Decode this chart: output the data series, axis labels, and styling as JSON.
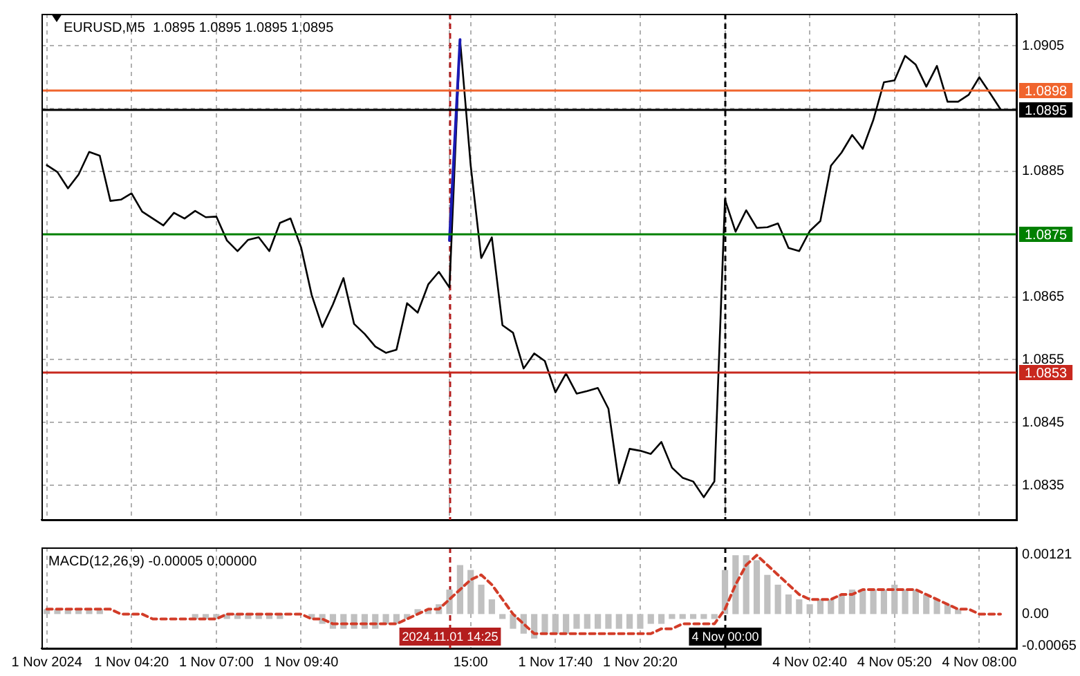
{
  "chart_data": [
    {
      "type": "line",
      "title": "EURUSD,M5  1.0895 1.0895 1.0895 1.0895",
      "categories": [
        "1 Nov 2024",
        null,
        null,
        null,
        null,
        null,
        null,
        null,
        "1 Nov 04:20",
        null,
        null,
        null,
        null,
        null,
        null,
        null,
        "1 Nov 07:00",
        null,
        null,
        null,
        null,
        null,
        null,
        null,
        "1 Nov 09:40",
        null,
        null,
        null,
        null,
        null,
        null,
        null,
        null,
        null,
        null,
        null,
        null,
        null,
        "2024.11.01 14:25",
        null,
        "15:00",
        null,
        null,
        null,
        null,
        null,
        null,
        null,
        "1 Nov 17:40",
        null,
        null,
        null,
        null,
        null,
        null,
        null,
        "1 Nov 20:20",
        null,
        null,
        null,
        null,
        null,
        null,
        null,
        "4 Nov 00:00",
        null,
        null,
        null,
        null,
        null,
        null,
        null,
        "4 Nov 02:40",
        null,
        null,
        null,
        null,
        null,
        null,
        null,
        "4 Nov 05:20",
        null,
        null,
        null,
        null,
        null,
        null,
        null,
        "4 Nov 08:00",
        null,
        null,
        null
      ],
      "ylim": [
        1.08295,
        1.09101
      ],
      "yticks": [
        1.0835,
        1.0845,
        1.0855,
        1.0865,
        1.0875,
        1.0885,
        {
          "value": 1.0895,
          "label": null
        },
        1.0905
      ],
      "tick_labels": "y",
      "grid": true,
      "legend": false,
      "series": [
        {
          "color": "#000000",
          "values": [
            1.0886,
            1.08849,
            1.08823,
            1.08845,
            1.08881,
            1.08875,
            1.08803,
            1.08805,
            1.08815,
            1.08786,
            1.08775,
            1.08764,
            1.08784,
            1.08775,
            1.08787,
            1.08777,
            1.08778,
            1.0874,
            1.08723,
            1.08741,
            1.08745,
            1.08723,
            1.08768,
            1.08775,
            1.08729,
            1.08653,
            1.08602,
            1.08638,
            1.0868,
            1.08607,
            1.08591,
            1.08571,
            1.08561,
            1.08566,
            1.0864,
            1.08625,
            1.0867,
            1.0869,
            1.08665,
            1.0906,
            1.0886,
            1.08712,
            1.08745,
            1.08605,
            1.08593,
            1.08536,
            1.0856,
            1.08548,
            1.08498,
            1.08528,
            1.08496,
            1.085,
            1.08505,
            1.08472,
            1.08353,
            1.08408,
            1.08405,
            1.084,
            1.08419,
            1.08378,
            1.08362,
            1.08356,
            1.08331,
            1.08356,
            1.08805,
            1.08754,
            1.08788,
            1.0876,
            1.08761,
            1.08767,
            1.08728,
            1.08723,
            1.08755,
            1.08771,
            1.08859,
            1.0888,
            1.08908,
            1.08886,
            1.08932,
            1.08992,
            1.08995,
            1.09034,
            1.0902,
            1.08985,
            1.09018,
            1.08961,
            1.08961,
            1.08972,
            1.09,
            1.08975,
            1.08949,
            null
          ]
        },
        {
          "color": "#1a1ab4",
          "values": [
            null,
            null,
            null,
            null,
            null,
            null,
            null,
            null,
            null,
            null,
            null,
            null,
            null,
            null,
            null,
            null,
            null,
            null,
            null,
            null,
            null,
            null,
            null,
            null,
            null,
            null,
            null,
            null,
            null,
            null,
            null,
            null,
            null,
            null,
            null,
            null,
            null,
            null,
            1.0874,
            1.0906,
            null,
            null,
            null,
            null,
            null,
            null,
            null,
            null,
            null,
            null,
            null,
            null,
            null,
            null,
            null,
            null,
            null,
            null,
            null,
            null,
            null,
            null,
            null,
            null,
            null,
            null,
            null,
            null,
            null,
            null,
            null,
            null,
            null,
            null,
            null,
            null,
            null,
            null,
            null,
            null,
            null,
            null,
            null,
            null,
            null,
            null,
            null,
            null,
            null,
            null,
            null,
            null
          ]
        }
      ],
      "ref_lines": [
        {
          "axis": "y",
          "value": 1.0898,
          "label": "1.0898",
          "color": "#f0642d"
        },
        {
          "axis": "y",
          "value": 1.0895,
          "label": "1.0895",
          "color": "#000000"
        },
        {
          "axis": "y",
          "value": 1.0875,
          "label": "1.0875",
          "color": "#008000"
        },
        {
          "axis": "y",
          "value": 1.0853,
          "label": "1.0853",
          "color": "#c8281e"
        },
        {
          "axis": "x",
          "value": "2024.11.01 14:25",
          "color": "#b41e1e",
          "line_style": "dashed"
        },
        {
          "axis": "x",
          "value": "4 Nov 00:00",
          "color": "#000000",
          "line_style": "dashed"
        }
      ]
    },
    {
      "type": "bar",
      "title": "MACD(12,26,9) -0.00005 0.00000",
      "categories": [
        "1 Nov 2024",
        null,
        null,
        null,
        null,
        null,
        null,
        null,
        "1 Nov 04:20",
        null,
        null,
        null,
        null,
        null,
        null,
        null,
        "1 Nov 07:00",
        null,
        null,
        null,
        null,
        null,
        null,
        null,
        "1 Nov 09:40",
        null,
        null,
        null,
        null,
        null,
        null,
        null,
        null,
        null,
        null,
        null,
        null,
        null,
        "2024.11.01 14:25",
        null,
        "15:00",
        null,
        null,
        null,
        null,
        null,
        null,
        null,
        "1 Nov 17:40",
        null,
        null,
        null,
        null,
        null,
        null,
        null,
        "1 Nov 20:20",
        null,
        null,
        null,
        null,
        null,
        null,
        null,
        "4 Nov 00:00",
        null,
        null,
        null,
        null,
        null,
        null,
        null,
        "4 Nov 02:40",
        null,
        null,
        null,
        null,
        null,
        null,
        null,
        "4 Nov 05:20",
        null,
        null,
        null,
        null,
        null,
        null,
        null,
        "4 Nov 08:00",
        null,
        null,
        null
      ],
      "ylim": [
        -0.0007,
        0.00136
      ],
      "yticks": [
        0.00121,
        {
          "value": 0,
          "label": "0.00"
        },
        -0.00065
      ],
      "grid": "x",
      "legend": false,
      "series": [
        {
          "color": "#c0c0c0",
          "values": [
            0.0001,
            0.0001,
            0.0001,
            0.0001,
            0.0001,
            0.0001,
            0,
            0,
            0,
            0,
            0,
            0,
            0,
            0,
            -0.0001,
            -0.0001,
            -0.0001,
            -0.0001,
            -0.0001,
            -0.0001,
            -0.0001,
            -0.0001,
            -0.0001,
            0,
            0,
            -0.0001,
            -0.0002,
            -0.0003,
            -0.0003,
            -0.0003,
            -0.0003,
            -0.0003,
            -0.0002,
            -0.0002,
            -0.0001,
            0.0001,
            0.0001,
            0.0002,
            0.0005,
            0.001,
            0.0009,
            0.0006,
            0.0003,
            -0.0001,
            -0.0003,
            -0.0004,
            -0.0005,
            -0.0004,
            -0.0004,
            -0.0004,
            -0.0003,
            -0.0003,
            -0.0003,
            -0.0003,
            -0.0003,
            -0.0003,
            -0.0003,
            -0.0002,
            -0.0002,
            -0.0001,
            -0.0001,
            -0.0001,
            -0.0001,
            -0.0001,
            0.0009,
            0.0012,
            0.0012,
            0.0011,
            0.0008,
            0.0006,
            0.0004,
            0.0003,
            0.0002,
            0.0003,
            0.0003,
            0.0004,
            0.0005,
            0.0005,
            0.0005,
            0.0005,
            0.0006,
            0.0005,
            0.0005,
            0.0004,
            0.0003,
            0.0002,
            0.0001,
            0,
            0,
            0,
            0,
            null
          ]
        },
        {
          "type": "line",
          "color": "#d23c28",
          "line_style": "dashed",
          "values": [
            0.0001,
            0.0001,
            0.0001,
            0.0001,
            0.0001,
            0.0001,
            0.0001,
            0,
            0,
            0,
            -0.0001,
            -0.0001,
            -0.0001,
            -0.0001,
            -0.0001,
            -0.0001,
            -0.0001,
            0,
            0,
            0,
            0,
            0,
            0,
            0,
            0,
            -0.0001,
            -0.0001,
            -0.0002,
            -0.0002,
            -0.0002,
            -0.0002,
            -0.0002,
            -0.0002,
            -0.0002,
            -0.0001,
            0,
            0.0001,
            0.0001,
            0.0003,
            0.0005,
            0.0007,
            0.0008,
            0.0006,
            0.0003,
            0,
            -0.0002,
            -0.0004,
            -0.0004,
            -0.0004,
            -0.0004,
            -0.0004,
            -0.0004,
            -0.0004,
            -0.0004,
            -0.0004,
            -0.0004,
            -0.0004,
            -0.0004,
            -0.0003,
            -0.0003,
            -0.0002,
            -0.0002,
            -0.0002,
            -0.0002,
            0.0001,
            0.0006,
            0.001,
            0.0012,
            0.001,
            0.0008,
            0.0006,
            0.0004,
            0.0003,
            0.0003,
            0.0003,
            0.0004,
            0.0004,
            0.0005,
            0.0005,
            0.0005,
            0.0005,
            0.0005,
            0.0005,
            0.0004,
            0.0003,
            0.0002,
            0.0001,
            0.0001,
            0,
            0,
            0,
            null
          ]
        }
      ],
      "ref_lines": [
        {
          "axis": "x",
          "value": "2024.11.01 14:25",
          "color": "#b41e1e",
          "line_style": "dashed"
        },
        {
          "axis": "x",
          "value": "4 Nov 00:00",
          "color": "#000000",
          "line_style": "dashed"
        }
      ]
    }
  ]
}
